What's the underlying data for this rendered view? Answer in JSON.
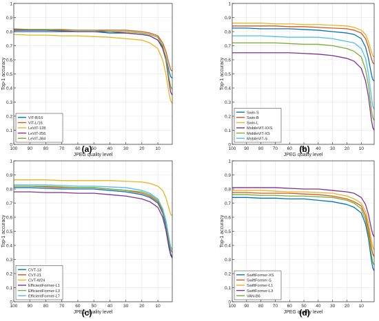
{
  "figure": {
    "panel_labels": [
      "(a)",
      "(b)",
      "(c)",
      "(d)"
    ]
  },
  "chart_data": [
    {
      "type": "line",
      "xlabel": "JPEG quality level",
      "ylabel": "Top-1 accuracy",
      "xlim": [
        100,
        1
      ],
      "ylim": [
        0,
        1
      ],
      "x_ticks": [
        100,
        90,
        80,
        70,
        60,
        50,
        40,
        30,
        20,
        10
      ],
      "y_ticks": [
        0,
        0.1,
        0.2,
        0.3,
        0.4,
        0.5,
        0.6,
        0.7,
        0.8,
        0.9,
        1
      ],
      "x_reverse": true,
      "grid": true,
      "legend_position": "bottom-left",
      "x": [
        100,
        90,
        80,
        70,
        60,
        50,
        40,
        30,
        20,
        15,
        10,
        7,
        5,
        3,
        2,
        1
      ],
      "series": [
        {
          "name": "ViT-B/16",
          "color": "#0072BD",
          "values": [
            0.8,
            0.8,
            0.8,
            0.8,
            0.8,
            0.8,
            0.79,
            0.79,
            0.78,
            0.77,
            0.74,
            0.69,
            0.62,
            0.52,
            0.48,
            0.47
          ]
        },
        {
          "name": "ViT-L/16",
          "color": "#D95319",
          "values": [
            0.815,
            0.815,
            0.815,
            0.815,
            0.81,
            0.81,
            0.81,
            0.81,
            0.8,
            0.79,
            0.77,
            0.72,
            0.66,
            0.57,
            0.53,
            0.52
          ]
        },
        {
          "name": "LeViT-128",
          "color": "#EDB120",
          "values": [
            0.78,
            0.775,
            0.775,
            0.77,
            0.77,
            0.765,
            0.76,
            0.75,
            0.74,
            0.72,
            0.68,
            0.6,
            0.5,
            0.36,
            0.31,
            0.29
          ]
        },
        {
          "name": "LeViT-256",
          "color": "#7E2F8E",
          "values": [
            0.81,
            0.81,
            0.81,
            0.805,
            0.8,
            0.8,
            0.8,
            0.79,
            0.78,
            0.77,
            0.74,
            0.68,
            0.6,
            0.44,
            0.37,
            0.35
          ]
        },
        {
          "name": "LeViT-384",
          "color": "#77AC30",
          "values": [
            0.82,
            0.815,
            0.815,
            0.81,
            0.81,
            0.81,
            0.8,
            0.8,
            0.79,
            0.78,
            0.76,
            0.7,
            0.62,
            0.47,
            0.41,
            0.39
          ]
        }
      ]
    },
    {
      "type": "line",
      "xlabel": "JPEG quality level",
      "ylabel": "Top-1 accuracy",
      "xlim": [
        100,
        1
      ],
      "ylim": [
        0,
        1
      ],
      "x_ticks": [
        100,
        90,
        80,
        70,
        60,
        50,
        40,
        30,
        20,
        10
      ],
      "y_ticks": [
        0,
        0.1,
        0.2,
        0.3,
        0.4,
        0.5,
        0.6,
        0.7,
        0.8,
        0.9,
        1
      ],
      "x_reverse": true,
      "grid": true,
      "legend_position": "bottom-left",
      "x": [
        100,
        90,
        80,
        70,
        60,
        50,
        40,
        30,
        20,
        15,
        10,
        7,
        5,
        3,
        2,
        1
      ],
      "series": [
        {
          "name": "Swin-S",
          "color": "#0072BD",
          "values": [
            0.825,
            0.825,
            0.82,
            0.82,
            0.82,
            0.815,
            0.81,
            0.8,
            0.79,
            0.78,
            0.75,
            0.69,
            0.61,
            0.5,
            0.46,
            0.45
          ]
        },
        {
          "name": "Swin-B",
          "color": "#D95319",
          "values": [
            0.84,
            0.84,
            0.84,
            0.84,
            0.835,
            0.835,
            0.83,
            0.825,
            0.82,
            0.81,
            0.79,
            0.75,
            0.69,
            0.61,
            0.58,
            0.57
          ]
        },
        {
          "name": "Swin-L",
          "color": "#EDB120",
          "values": [
            0.86,
            0.86,
            0.86,
            0.855,
            0.855,
            0.85,
            0.85,
            0.845,
            0.84,
            0.83,
            0.81,
            0.78,
            0.73,
            0.66,
            0.63,
            0.62
          ]
        },
        {
          "name": "MobileViT-XXS",
          "color": "#7E2F8E",
          "values": [
            0.65,
            0.65,
            0.65,
            0.65,
            0.65,
            0.645,
            0.64,
            0.63,
            0.61,
            0.59,
            0.54,
            0.45,
            0.34,
            0.18,
            0.12,
            0.1
          ]
        },
        {
          "name": "MobileViT-XS",
          "color": "#77AC30",
          "values": [
            0.72,
            0.72,
            0.72,
            0.72,
            0.715,
            0.71,
            0.71,
            0.7,
            0.68,
            0.66,
            0.62,
            0.53,
            0.42,
            0.25,
            0.19,
            0.17
          ]
        },
        {
          "name": "MobileViT-S",
          "color": "#4DBEEE",
          "values": [
            0.77,
            0.77,
            0.77,
            0.765,
            0.76,
            0.76,
            0.76,
            0.75,
            0.73,
            0.72,
            0.68,
            0.61,
            0.5,
            0.34,
            0.27,
            0.25
          ]
        }
      ]
    },
    {
      "type": "line",
      "xlabel": "JPEG quality level",
      "ylabel": "Top-1 accuracy",
      "xlim": [
        100,
        1
      ],
      "ylim": [
        0,
        1
      ],
      "x_ticks": [
        100,
        90,
        80,
        70,
        60,
        50,
        40,
        30,
        20,
        10
      ],
      "y_ticks": [
        0,
        0.1,
        0.2,
        0.3,
        0.4,
        0.5,
        0.6,
        0.7,
        0.8,
        0.9,
        1
      ],
      "x_reverse": true,
      "grid": true,
      "legend_position": "bottom-left",
      "x": [
        100,
        90,
        80,
        70,
        60,
        50,
        40,
        30,
        20,
        15,
        10,
        7,
        5,
        3,
        2,
        1
      ],
      "series": [
        {
          "name": "CVT-13",
          "color": "#0072BD",
          "values": [
            0.81,
            0.81,
            0.805,
            0.8,
            0.8,
            0.8,
            0.79,
            0.78,
            0.76,
            0.74,
            0.7,
            0.63,
            0.54,
            0.4,
            0.34,
            0.32
          ]
        },
        {
          "name": "CVT-21",
          "color": "#D95319",
          "values": [
            0.82,
            0.82,
            0.815,
            0.81,
            0.81,
            0.81,
            0.8,
            0.79,
            0.77,
            0.75,
            0.71,
            0.64,
            0.56,
            0.42,
            0.37,
            0.35
          ]
        },
        {
          "name": "CVT-W24",
          "color": "#EDB120",
          "values": [
            0.865,
            0.865,
            0.865,
            0.86,
            0.86,
            0.86,
            0.86,
            0.855,
            0.85,
            0.84,
            0.82,
            0.79,
            0.74,
            0.66,
            0.62,
            0.61
          ]
        },
        {
          "name": "EfficientFormer-L1",
          "color": "#7E2F8E",
          "values": [
            0.78,
            0.78,
            0.775,
            0.775,
            0.77,
            0.77,
            0.76,
            0.75,
            0.73,
            0.71,
            0.67,
            0.6,
            0.51,
            0.38,
            0.33,
            0.31
          ]
        },
        {
          "name": "EfficientFormer-L3",
          "color": "#77AC30",
          "values": [
            0.82,
            0.82,
            0.82,
            0.815,
            0.81,
            0.81,
            0.8,
            0.79,
            0.78,
            0.76,
            0.72,
            0.65,
            0.56,
            0.43,
            0.37,
            0.35
          ]
        },
        {
          "name": "EfficientFormer-L7",
          "color": "#4DBEEE",
          "values": [
            0.83,
            0.83,
            0.83,
            0.825,
            0.82,
            0.82,
            0.815,
            0.81,
            0.79,
            0.77,
            0.73,
            0.66,
            0.58,
            0.45,
            0.39,
            0.37
          ]
        }
      ]
    },
    {
      "type": "line",
      "xlabel": "JPEG quality level",
      "ylabel": "Top-1 accuracy",
      "xlim": [
        100,
        1
      ],
      "ylim": [
        0,
        1
      ],
      "x_ticks": [
        100,
        90,
        80,
        70,
        60,
        50,
        40,
        30,
        20,
        10
      ],
      "y_ticks": [
        0,
        0.1,
        0.2,
        0.3,
        0.4,
        0.5,
        0.6,
        0.7,
        0.8,
        0.9,
        1
      ],
      "x_reverse": true,
      "grid": true,
      "legend_position": "bottom-left",
      "x": [
        100,
        90,
        80,
        70,
        60,
        50,
        40,
        30,
        20,
        15,
        10,
        7,
        5,
        3,
        2,
        1
      ],
      "series": [
        {
          "name": "SwiftFormer-XS",
          "color": "#0072BD",
          "values": [
            0.74,
            0.74,
            0.735,
            0.735,
            0.73,
            0.73,
            0.72,
            0.71,
            0.69,
            0.67,
            0.63,
            0.55,
            0.45,
            0.3,
            0.24,
            0.22
          ]
        },
        {
          "name": "SwiftFormer-S",
          "color": "#D95319",
          "values": [
            0.775,
            0.775,
            0.77,
            0.77,
            0.77,
            0.765,
            0.76,
            0.75,
            0.73,
            0.71,
            0.68,
            0.61,
            0.52,
            0.39,
            0.34,
            0.32
          ]
        },
        {
          "name": "SwiftFormer-L1",
          "color": "#EDB120",
          "values": [
            0.79,
            0.79,
            0.79,
            0.785,
            0.78,
            0.78,
            0.775,
            0.77,
            0.75,
            0.73,
            0.7,
            0.64,
            0.56,
            0.44,
            0.39,
            0.37
          ]
        },
        {
          "name": "SwiftFormer-L3",
          "color": "#7E2F8E",
          "values": [
            0.81,
            0.81,
            0.81,
            0.81,
            0.805,
            0.8,
            0.8,
            0.79,
            0.78,
            0.77,
            0.74,
            0.69,
            0.62,
            0.52,
            0.48,
            0.46
          ]
        },
        {
          "name": "VAN-B6",
          "color": "#77AC30",
          "values": [
            0.76,
            0.76,
            0.755,
            0.755,
            0.75,
            0.75,
            0.745,
            0.74,
            0.72,
            0.7,
            0.66,
            0.58,
            0.48,
            0.34,
            0.28,
            0.26
          ]
        }
      ]
    }
  ]
}
